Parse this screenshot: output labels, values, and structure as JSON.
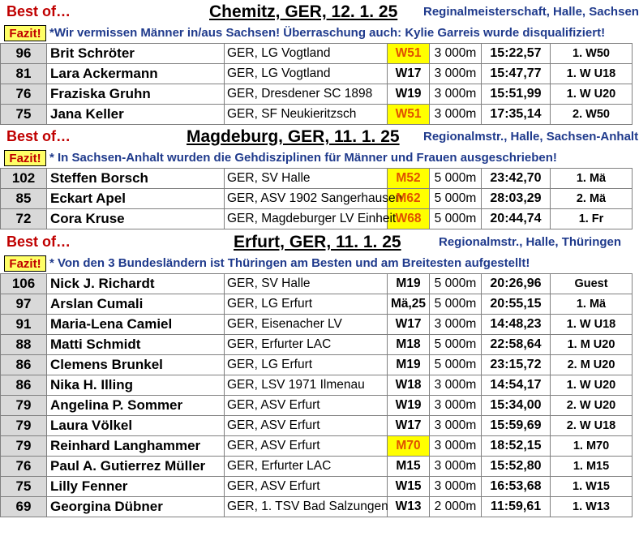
{
  "sections": [
    {
      "best_of": "Best of…",
      "location": "Chemitz, GER, 12. 1. 25",
      "event": "Reginalmeisterschaft, Halle, Sachsen",
      "fazit_label": "Fazit!",
      "note": "*Wir vermissen Männer in/aus Sachsen! Überraschung auch: Kylie Garreis wurde disqualifiziert!",
      "rows": [
        {
          "score": "96",
          "name": "Brit Schröter",
          "club": "GER, LG Vogtland",
          "cat": "W51",
          "dist": "3 000m",
          "time": "15:22,57",
          "place": "1. W50"
        },
        {
          "score": "81",
          "name": "Lara Ackermann",
          "club": "GER, LG Vogtland",
          "cat": "W17",
          "dist": "3 000m",
          "time": "15:47,77",
          "place": "1. W U18"
        },
        {
          "score": "76",
          "name": "Fraziska Gruhn",
          "club": "GER, Dresdener SC 1898",
          "cat": "W19",
          "dist": "3 000m",
          "time": "15:51,99",
          "place": "1. W U20"
        },
        {
          "score": "75",
          "name": "Jana Keller",
          "club": "GER, SF Neukieritzsch",
          "cat": "W51",
          "dist": "3 000m",
          "time": "17:35,14",
          "place": "2. W50"
        }
      ]
    },
    {
      "best_of": "Best of…",
      "location": "Magdeburg, GER, 11. 1. 25",
      "event": "Regionalmstr., Halle, Sachsen-Anhalt",
      "fazit_label": "Fazit!",
      "note": "* In Sachsen-Anhalt wurden die Gehdisziplinen für Männer und Frauen ausgeschrieben!",
      "rows": [
        {
          "score": "102",
          "name": "Steffen Borsch",
          "club": "GER, SV Halle",
          "cat": "M52",
          "dist": "5 000m",
          "time": "23:42,70",
          "place": "1. Mä"
        },
        {
          "score": "85",
          "name": "Eckart Apel",
          "club": "GER, ASV 1902 Sangerhausen",
          "cat": "M62",
          "dist": "5 000m",
          "time": "28:03,29",
          "place": "2. Mä"
        },
        {
          "score": "72",
          "name": "Cora Kruse",
          "club": "GER, Magdeburger LV Einheit",
          "cat": "W68",
          "dist": "5 000m",
          "time": "20:44,74",
          "place": "1. Fr"
        }
      ]
    },
    {
      "best_of": "Best of…",
      "location": "Erfurt, GER, 11. 1. 25",
      "event": "Regionalmstr., Halle, Thüringen",
      "fazit_label": "Fazit!",
      "note": "* Von den 3 Bundesländern ist Thüringen am Besten und am Breitesten aufgestellt!",
      "rows": [
        {
          "score": "106",
          "name": "Nick J. Richardt",
          "club": "GER, SV Halle",
          "cat": "M19",
          "dist": "5 000m",
          "time": "20:26,96",
          "place": "Guest"
        },
        {
          "score": "97",
          "name": "Arslan Cumali",
          "club": "GER, LG Erfurt",
          "cat": "Mä,25",
          "dist": "5 000m",
          "time": "20:55,15",
          "place": "1. Mä"
        },
        {
          "score": "91",
          "name": "Maria-Lena Camiel",
          "club": "GER, Eisenacher LV",
          "cat": "W17",
          "dist": "3 000m",
          "time": "14:48,23",
          "place": "1. W U18"
        },
        {
          "score": "88",
          "name": "Matti Schmidt",
          "club": "GER, Erfurter LAC",
          "cat": "M18",
          "dist": "5 000m",
          "time": "22:58,64",
          "place": "1. M U20"
        },
        {
          "score": "86",
          "name": "Clemens Brunkel",
          "club": "GER, LG Erfurt",
          "cat": "M19",
          "dist": "5 000m",
          "time": "23:15,72",
          "place": "2. M U20"
        },
        {
          "score": "86",
          "name": "Nika H. Illing",
          "club": "GER, LSV 1971 Ilmenau",
          "cat": "W18",
          "dist": "3 000m",
          "time": "14:54,17",
          "place": "1. W U20"
        },
        {
          "score": "79",
          "name": "Angelina P. Sommer",
          "club": "GER, ASV Erfurt",
          "cat": "W19",
          "dist": "3 000m",
          "time": "15:34,00",
          "place": "2. W U20"
        },
        {
          "score": "79",
          "name": "Laura Völkel",
          "club": "GER, ASV Erfurt",
          "cat": "W17",
          "dist": "3 000m",
          "time": "15:59,69",
          "place": "2. W U18"
        },
        {
          "score": "79",
          "name": "Reinhard Langhammer",
          "club": "GER, ASV Erfurt",
          "cat": "M70",
          "dist": "3 000m",
          "time": "18:52,15",
          "place": "1. M70"
        },
        {
          "score": "76",
          "name": "Paul A. Gutierrez Müller",
          "club": "GER, Erfurter LAC",
          "cat": "M15",
          "dist": "3 000m",
          "time": "15:52,80",
          "place": "1. M15"
        },
        {
          "score": "75",
          "name": "Lilly Fenner",
          "club": "GER, ASV Erfurt",
          "cat": "W15",
          "dist": "3 000m",
          "time": "16:53,68",
          "place": "1. W15"
        },
        {
          "score": "69",
          "name": "Georgina Dübner",
          "club": "GER, 1. TSV Bad Salzungen",
          "cat": "W13",
          "dist": "2 000m",
          "time": "11:59,61",
          "place": "1. W13"
        }
      ]
    }
  ],
  "highlighted_categories": [
    "W51",
    "M52",
    "M62",
    "W68",
    "M70"
  ],
  "colors": {
    "red": "#c00000",
    "blue": "#1f3a8c",
    "highlight": "#ffff00",
    "highlight_text": "#e05000",
    "fazit_bg": "#ffff66",
    "score_bg": "#d9d9d9"
  }
}
